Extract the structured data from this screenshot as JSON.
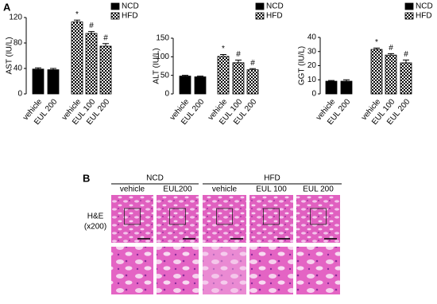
{
  "panel_a_label": "A",
  "panel_b_label": "B",
  "chart_data": [
    {
      "type": "bar",
      "y_label": "AST (IU/L)",
      "categories": [
        "vehicle",
        "EUL 200",
        "vehicle",
        "EUL 100",
        "EUL 200"
      ],
      "series": [
        {
          "name": "NCD",
          "color": "#000000",
          "fill": "solid",
          "values": [
            39,
            38,
            null,
            null,
            null
          ],
          "errors": [
            2,
            2,
            null,
            null,
            null
          ],
          "annotations": [
            null,
            null,
            null,
            null,
            null
          ]
        },
        {
          "name": "HFD",
          "color": "#000000",
          "fill": "checkered",
          "values": [
            null,
            null,
            113,
            95,
            75
          ],
          "errors": [
            null,
            null,
            3,
            3,
            4
          ],
          "annotations": [
            null,
            null,
            "*",
            "#",
            "#"
          ]
        }
      ],
      "ylim": [
        0,
        120
      ],
      "yticks": [
        0,
        40,
        80,
        120
      ],
      "legend": "top-right"
    },
    {
      "type": "bar",
      "y_label": "ALT (IU/L)",
      "categories": [
        "vehicle",
        "EUL 200",
        "vehicle",
        "EUL 100",
        "EUL 200"
      ],
      "series": [
        {
          "name": "NCD",
          "color": "#000000",
          "fill": "solid",
          "values": [
            48,
            46,
            null,
            null,
            null
          ],
          "errors": [
            2,
            2,
            null,
            null,
            null
          ],
          "annotations": [
            null,
            null,
            null,
            null,
            null
          ]
        },
        {
          "name": "HFD",
          "color": "#000000",
          "fill": "checkered",
          "values": [
            null,
            null,
            101,
            84,
            65
          ],
          "errors": [
            null,
            null,
            5,
            7,
            3
          ],
          "annotations": [
            null,
            null,
            "*",
            "#",
            "#"
          ]
        }
      ],
      "ylim": [
        0,
        150
      ],
      "yticks": [
        0,
        50,
        100,
        150
      ],
      "legend": "top-right"
    },
    {
      "type": "bar",
      "y_label": "GGT (IU/L)",
      "categories": [
        "vehicle",
        "EUL 200",
        "vehicle",
        "EUL 100",
        "EUL 200"
      ],
      "series": [
        {
          "name": "NCD",
          "color": "#000000",
          "fill": "solid",
          "values": [
            9,
            9,
            null,
            null,
            null
          ],
          "errors": [
            0.5,
            1,
            null,
            null,
            null
          ],
          "annotations": [
            null,
            null,
            null,
            null,
            null
          ]
        },
        {
          "name": "HFD",
          "color": "#000000",
          "fill": "checkered",
          "values": [
            null,
            null,
            31.5,
            27.5,
            22
          ],
          "errors": [
            null,
            null,
            1,
            1,
            2
          ],
          "annotations": [
            null,
            null,
            "*",
            "#",
            "#"
          ]
        }
      ],
      "ylim": [
        0,
        40
      ],
      "yticks": [
        0,
        10,
        20,
        30,
        40
      ],
      "legend": "top-right"
    }
  ],
  "histology": {
    "groups": [
      "NCD",
      "HFD"
    ],
    "columns": [
      "vehicle",
      "EUL200",
      "vehicle",
      "EUL 100",
      "EUL 200"
    ],
    "row_label": [
      "H&E",
      "(x200)"
    ]
  }
}
